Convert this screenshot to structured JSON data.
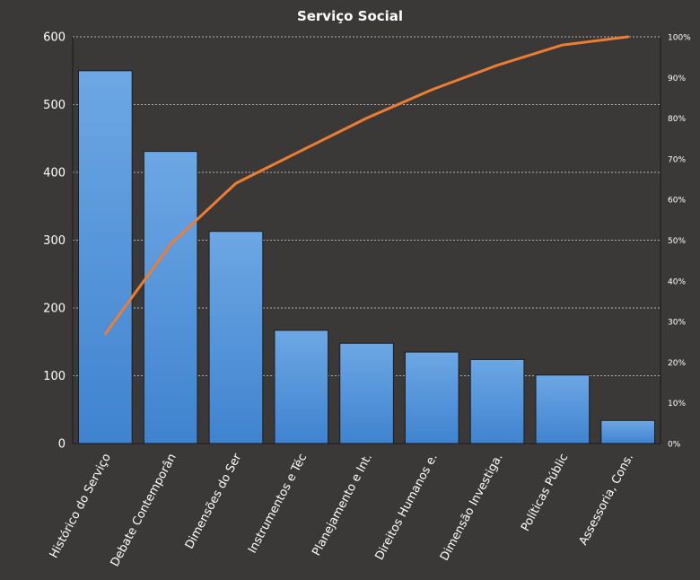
{
  "chart_data": {
    "type": "bar",
    "title": "Serviço Social",
    "xlabel": "",
    "ylabel": "",
    "categories": [
      "Histórico do Serviço",
      "Debate Contemporân",
      "Dimensões do Ser",
      "Instrumentos  e Téc",
      "Planejamento e Int.",
      "Direitos Humanos  e.",
      "Dimensão Investiga.",
      "Políticas Públic",
      "Assessoria, Cons."
    ],
    "series": [
      {
        "type": "bar",
        "axis": "left",
        "values": [
          550,
          431,
          313,
          167,
          148,
          135,
          124,
          101,
          34
        ]
      },
      {
        "type": "line",
        "axis": "right",
        "values": [
          27,
          49,
          64,
          72,
          80,
          87,
          93,
          98,
          100
        ]
      }
    ],
    "ylim": [
      0,
      600
    ],
    "yticks": [
      "0",
      "100",
      "200",
      "300",
      "400",
      "500",
      "600"
    ],
    "y2lim": [
      0,
      100
    ],
    "y2ticks": [
      "0%",
      "10%",
      "20%",
      "30%",
      "40%",
      "50%",
      "60%",
      "70%",
      "80%",
      "90%",
      "100%"
    ],
    "grid": true,
    "legend": "none",
    "colors": {
      "background": "#3b3838",
      "bar_top": "#6da7e4",
      "bar_bottom": "#3f83cf",
      "bar_stroke": "#1c1c1c",
      "line": "#ed7d31",
      "grid": "#d9d9d9",
      "text": "#ffffff"
    }
  }
}
